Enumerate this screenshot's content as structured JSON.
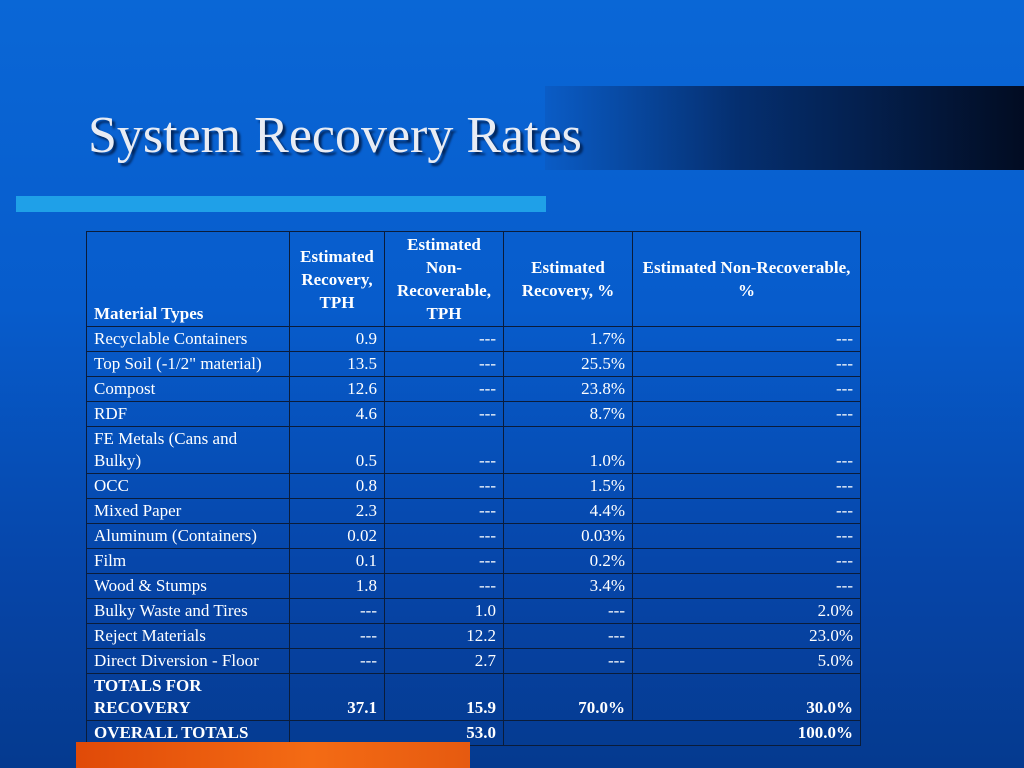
{
  "slide": {
    "title": "System Recovery Rates"
  },
  "table": {
    "headers": [
      "Material Types",
      "Estimated Recovery, TPH",
      "Estimated Non-Recoverable, TPH",
      "Estimated Recovery, %",
      "Estimated Non-Recoverable, %"
    ],
    "rows": [
      [
        "Recyclable Containers",
        "0.9",
        "---",
        "1.7%",
        "---"
      ],
      [
        "Top Soil (-1/2\" material)",
        "13.5",
        "---",
        "25.5%",
        "---"
      ],
      [
        "Compost",
        "12.6",
        "---",
        "23.8%",
        "---"
      ],
      [
        "RDF",
        "4.6",
        "---",
        "8.7%",
        "---"
      ],
      [
        "FE Metals (Cans and Bulky)",
        "0.5",
        "---",
        "1.0%",
        "---"
      ],
      [
        "OCC",
        "0.8",
        "---",
        "1.5%",
        "---"
      ],
      [
        "Mixed Paper",
        "2.3",
        "---",
        "4.4%",
        "---"
      ],
      [
        "Aluminum (Containers)",
        "0.02",
        "---",
        "0.03%",
        "---"
      ],
      [
        "Film",
        "0.1",
        "---",
        "0.2%",
        "---"
      ],
      [
        "Wood & Stumps",
        "1.8",
        "---",
        "3.4%",
        "---"
      ],
      [
        "Bulky Waste and Tires",
        "---",
        "1.0",
        "---",
        "2.0%"
      ],
      [
        "Reject Materials",
        "---",
        "12.2",
        "---",
        "23.0%"
      ],
      [
        "Direct  Diversion  - Floor",
        "---",
        "2.7",
        "---",
        "5.0%"
      ]
    ],
    "totals_recovery": [
      "TOTALS FOR RECOVERY",
      "37.1",
      "15.9",
      "70.0%",
      "30.0%"
    ],
    "overall_totals": [
      "OVERALL TOTALS",
      "53.0",
      "100.0%"
    ]
  }
}
